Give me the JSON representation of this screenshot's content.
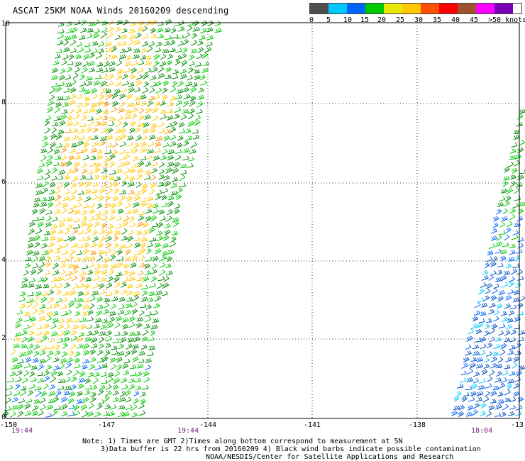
{
  "title": "ASCAT 25KM NOAA Winds 20160209 descending",
  "legend": {
    "colors": [
      "#505050",
      "#a8a8a8",
      "#00c8ff",
      "#0064ff",
      "#0050c8",
      "#00c800",
      "#008c00",
      "#e8e800",
      "#ffc800",
      "#ff9000",
      "#ff5000",
      "#ff0000",
      "#c80000",
      "#a0522d",
      "#784020",
      "#ff00ff",
      "#c800c8",
      "#7800b4",
      "#4b0082"
    ],
    "labels": [
      "0",
      "5",
      "10",
      "15",
      "20",
      "25",
      "30",
      "35",
      "40",
      "45",
      ">50 knots"
    ]
  },
  "axes": {
    "x_labels": [
      "-150",
      "-147",
      "-144",
      "-141",
      "-138",
      "-13"
    ],
    "y_labels": [
      "0",
      "2",
      "4",
      "6",
      "8",
      "10"
    ],
    "grid": true
  },
  "times": [
    "19:44",
    "19:44",
    "18:04"
  ],
  "notes": [
    "Note: 1) Times are GMT 2)Times along bottom correspond to measurement at 5N",
    "3)Data buffer is 22 hrs from 20160209 4) Black wind barbs indicate possible contamination",
    "NOAA/NESDIS/Center for Satellite Applications and Research"
  ]
}
